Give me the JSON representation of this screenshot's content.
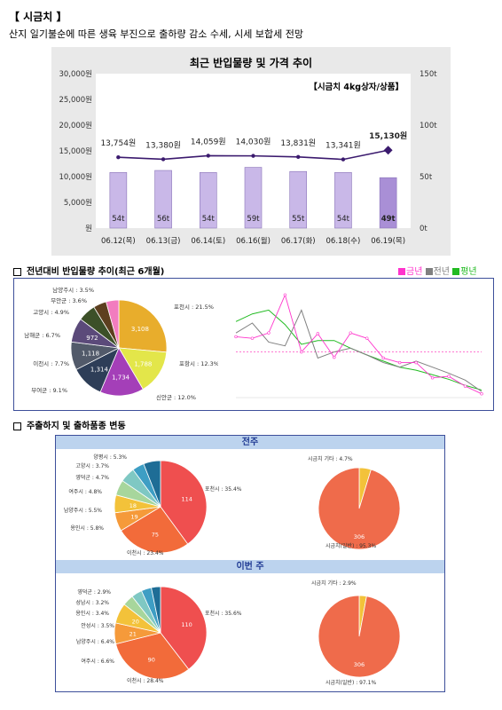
{
  "header": {
    "title": "【 시금치 】",
    "subtitle": "산지 일기불순에 따른 생육 부진으로 출하량 감소 수세, 시세 보합세 전망"
  },
  "price_chart": {
    "title": "최근 반입물량 및 가격 추이",
    "unit_label": "【시금치 4kg상자/상품】",
    "left_ticks": [
      "30,000원",
      "25,000원",
      "20,000원",
      "15,000원",
      "10,000원",
      "5,000원",
      "원"
    ],
    "right_ticks": [
      "150t",
      "100t",
      "50t",
      "0t"
    ],
    "dates": [
      "06.12(목)",
      "06.13(금)",
      "06.14(토)",
      "06.16(월)",
      "06.17(화)",
      "06.18(수)",
      "06.19(목)"
    ],
    "price_labels": [
      "13,754원",
      "13,380원",
      "14,059원",
      "14,030원",
      "13,831원",
      "13,341원",
      "15,130원"
    ],
    "volume_labels": [
      "54t",
      "56t",
      "54t",
      "59t",
      "55t",
      "54t",
      "49t"
    ],
    "colors": {
      "bar": "#c9b8e8",
      "bar_last": "#a98fd6",
      "line": "#3b1a6e",
      "plot_bg": "#ffffff",
      "frame": "#e9e9e9"
    }
  },
  "chart_data": [
    {
      "type": "bar+line",
      "title": "최근 반입물량 및 가격 추이",
      "categories": [
        "06.12(목)",
        "06.13(금)",
        "06.14(토)",
        "06.16(월)",
        "06.17(화)",
        "06.18(수)",
        "06.19(목)"
      ],
      "series": [
        {
          "name": "반입물량",
          "axis": "right",
          "values": [
            54,
            56,
            54,
            59,
            55,
            54,
            49
          ]
        },
        {
          "name": "가격",
          "axis": "left",
          "values": [
            13754,
            13380,
            14059,
            14030,
            13831,
            13341,
            15130
          ]
        }
      ],
      "ylim_left": [
        0,
        30000
      ],
      "ylim_right": [
        0,
        150
      ]
    },
    {
      "type": "pie",
      "labels": [
        "포천시 : 21.5%",
        "포항시 : 12.3%",
        "신안군 : 12.0%",
        "부여군 : 9.1%",
        "이천시 : 7.7%",
        "남해군 : 6.7%",
        "고양시 : 4.9%",
        "무안군 : 3.6%",
        "남양주시 : 3.5%"
      ],
      "values": [
        21.5,
        12.3,
        12.0,
        9.1,
        7.7,
        6.7,
        4.9,
        3.6,
        3.5
      ],
      "data_labels": [
        "3,108",
        "1,788",
        "1,734",
        "1,314",
        "1,118",
        "972",
        "",
        "",
        ""
      ]
    },
    {
      "type": "line",
      "series": [
        {
          "name": "금년",
          "values": [
            120,
            118,
            125,
            175,
            100,
            124,
            93,
            125,
            118,
            92,
            86,
            86,
            66,
            68,
            55,
            45
          ]
        },
        {
          "name": "전년",
          "values": [
            125,
            138,
            113,
            108,
            155,
            92,
            100,
            105,
            96,
            86,
            80,
            88,
            80,
            72,
            63,
            48
          ]
        },
        {
          "name": "평년",
          "values": [
            140,
            150,
            155,
            136,
            110,
            115,
            115,
            105,
            96,
            88,
            80,
            76,
            70,
            64,
            56,
            50
          ]
        }
      ],
      "reference": 100
    },
    {
      "type": "pie",
      "labels": [
        "포천시 : 35.4%",
        "이천시 : 23.4%",
        "용인시 : 5.8%",
        "남양주시 : 5.5%",
        "여주시 : 4.8%",
        "영덕군 : 4.7%",
        "고양시 : 3.7%",
        "양평시 : 5.3%"
      ],
      "values": [
        35.4,
        23.4,
        5.8,
        5.5,
        4.8,
        4.7,
        3.7,
        5.3
      ],
      "data_labels": [
        "114",
        "75",
        "19",
        "18",
        "",
        "",
        "",
        ""
      ]
    },
    {
      "type": "pie",
      "labels": [
        "시금치(일반) : 95.3%",
        "시금치 기타 : 4.7%"
      ],
      "values": [
        95.3,
        4.7
      ],
      "data_labels": [
        "306",
        ""
      ]
    },
    {
      "type": "pie",
      "labels": [
        "포천시 : 35.6%",
        "이천시 : 28.4%",
        "여주시 : 6.6%",
        "남양주시 : 6.4%",
        "안성시 : 3.5%",
        "용인시 : 3.4%",
        "성남시 : 3.2%",
        "영덕군 : 2.9%"
      ],
      "values": [
        35.6,
        28.4,
        6.6,
        6.4,
        3.5,
        3.4,
        3.2,
        2.9
      ],
      "data_labels": [
        "110",
        "90",
        "21",
        "20",
        "",
        "",
        "",
        ""
      ]
    },
    {
      "type": "pie",
      "labels": [
        "시금치(일반) : 97.1%",
        "시금치 기타 : 2.9%"
      ],
      "values": [
        97.1,
        2.9
      ],
      "data_labels": [
        "306",
        ""
      ]
    }
  ],
  "section2": {
    "title": "전년대비 반입물량 추이(최근 6개월)",
    "legend": [
      {
        "label": "금년",
        "color": "#ff33cc"
      },
      {
        "label": "전년",
        "color": "#808080"
      },
      {
        "label": "평년",
        "color": "#22bb22"
      }
    ]
  },
  "section3": {
    "title": "주출하지 및 출하품종 변동",
    "band_prev": "전주",
    "band_curr": "이번 주"
  }
}
